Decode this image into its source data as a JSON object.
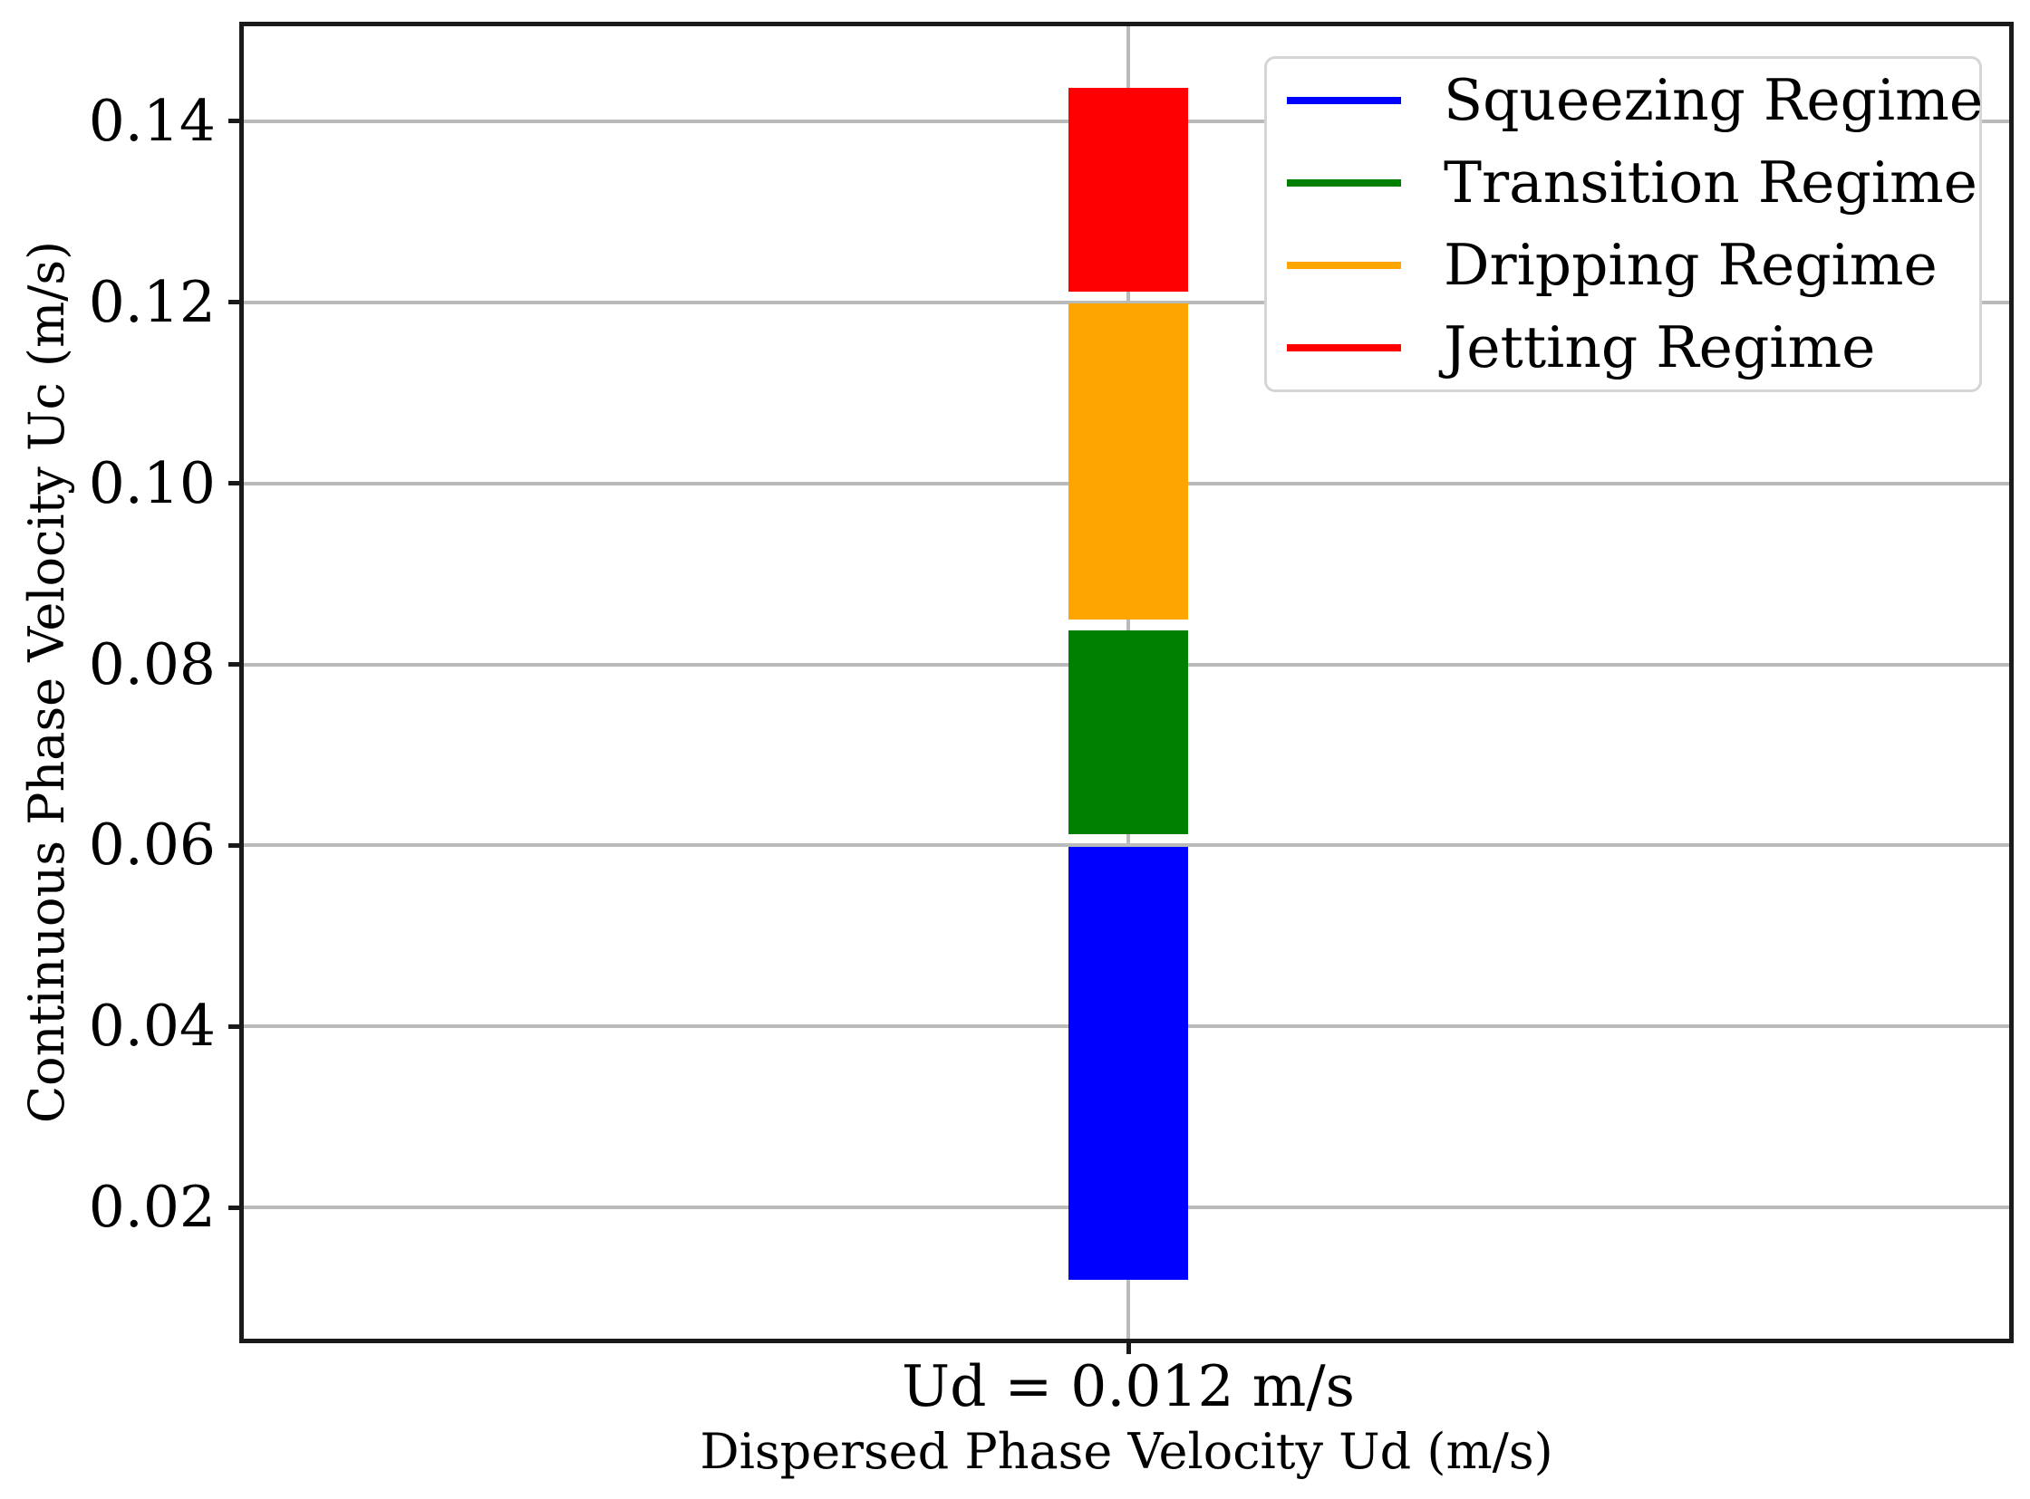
{
  "figure": {
    "background": "#ffffff"
  },
  "chart_data": {
    "type": "bar",
    "subtype": "stacked-regime-map-single-column",
    "title": "",
    "xlabel": "Dispersed Phase Velocity Ud (m/s)",
    "ylabel": "Continuous Phase Velocity Uc (m/s)",
    "categories": [
      "Ud = 0.012 m/s"
    ],
    "x_tick_label": "Ud = 0.012 m/s",
    "y_ticks": [
      0.02,
      0.04,
      0.06,
      0.08,
      0.1,
      0.12,
      0.14
    ],
    "y_tick_labels": [
      "0.02",
      "0.04",
      "0.06",
      "0.08",
      "0.10",
      "0.12",
      "0.14"
    ],
    "ylim": [
      0.0055,
      0.1505
    ],
    "grid": true,
    "legend_position": "upper-right",
    "series": [
      {
        "name": "Squeezing Regime",
        "color": "#0000ff",
        "uc_from": 0.012,
        "uc_to": 0.0598
      },
      {
        "name": "Transition Regime",
        "color": "#008000",
        "uc_from": 0.0612,
        "uc_to": 0.0838
      },
      {
        "name": "Dripping Regime",
        "color": "#ffa500",
        "uc_from": 0.085,
        "uc_to": 0.1199
      },
      {
        "name": "Jetting Regime",
        "color": "#ff0000",
        "uc_from": 0.1212,
        "uc_to": 0.1437
      }
    ]
  },
  "styles": {
    "grid_color": "#bababa",
    "spine_color": "#1a1a1a",
    "text_color": "#000000",
    "legend_border_color": "#d5d5d5"
  }
}
